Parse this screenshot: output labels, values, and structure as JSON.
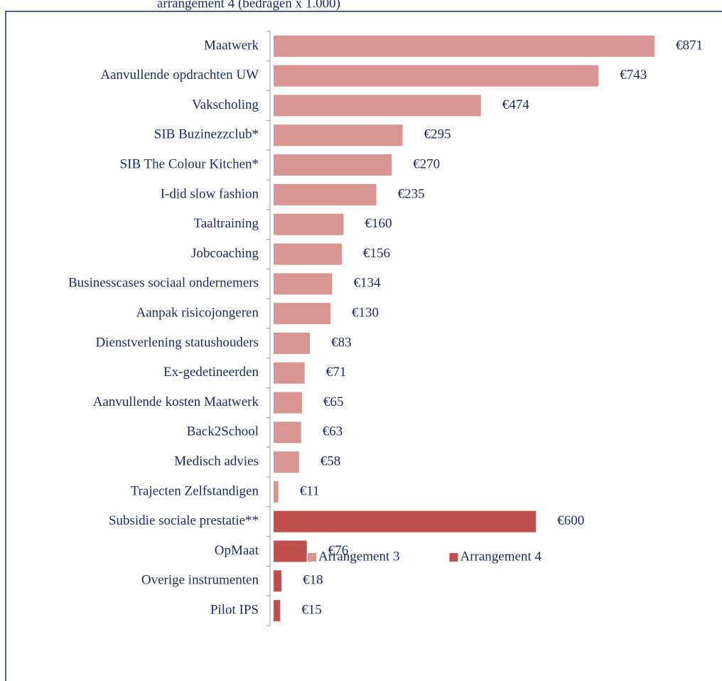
{
  "chart_data": {
    "type": "bar",
    "orientation": "horizontal",
    "subtitle": "arrangement 4 (bedragen x 1.000)",
    "categories": [
      "Maatwerk",
      "Aanvullende opdrachten UW",
      "Vakscholing",
      "SIB Buzinezzclub*",
      "SIB The Colour Kitchen*",
      "I-did slow fashion",
      "Taaltraining",
      "Jobcoaching",
      "Businesscases sociaal ondernemers",
      "Aanpak risicojongeren",
      "Dienstverlening statushouders",
      "Ex-gedetineerden",
      "Aanvullende kosten Maatwerk",
      "Back2School",
      "Medisch advies",
      "Trajecten Zelfstandigen",
      "Subsidie sociale prestatie**",
      "OpMaat",
      "Overige instrumenten",
      "Pilot IPS"
    ],
    "series": [
      {
        "name": "Arrangement 3",
        "color": "#d99594",
        "values": [
          871,
          743,
          474,
          295,
          270,
          235,
          160,
          156,
          134,
          130,
          83,
          71,
          65,
          63,
          58,
          11,
          null,
          null,
          null,
          null
        ],
        "value_labels": [
          "€871",
          "€743",
          "€474",
          "€295",
          "€270",
          "€235",
          "€160",
          "€156",
          "€134",
          "€130",
          "€83",
          "€71",
          "€65",
          "€63",
          "€58",
          "€11",
          null,
          null,
          null,
          null
        ]
      },
      {
        "name": "Arrangement 4",
        "color": "#c0504d",
        "values": [
          null,
          null,
          null,
          null,
          null,
          null,
          null,
          null,
          null,
          null,
          null,
          null,
          null,
          null,
          null,
          null,
          600,
          76,
          18,
          15
        ],
        "value_labels": [
          null,
          null,
          null,
          null,
          null,
          null,
          null,
          null,
          null,
          null,
          null,
          null,
          null,
          null,
          null,
          null,
          "€600",
          "€76",
          "€18",
          "€15"
        ]
      }
    ],
    "legend": "bottom"
  }
}
